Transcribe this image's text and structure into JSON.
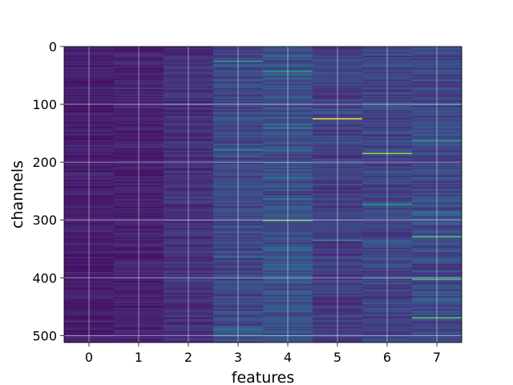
{
  "chart_data": {
    "type": "heatmap",
    "title": "",
    "xlabel": "features",
    "ylabel": "channels",
    "x_ticks": [
      0,
      1,
      2,
      3,
      4,
      5,
      6,
      7
    ],
    "y_ticks": [
      0,
      100,
      200,
      300,
      400,
      500
    ],
    "xlim": [
      -0.5,
      7.5
    ],
    "ylim": [
      512,
      0
    ],
    "n_features": 8,
    "n_channels": 512,
    "grid": true,
    "colormap": "viridis",
    "column_intensity": [
      0.08,
      0.09,
      0.14,
      0.22,
      0.24,
      0.18,
      0.2,
      0.22
    ],
    "highlights": [
      {
        "feature": 3,
        "channel": 25,
        "value": 0.55
      },
      {
        "feature": 3,
        "channel": 178,
        "value": 0.5
      },
      {
        "feature": 4,
        "channel": 42,
        "value": 0.55
      },
      {
        "feature": 4,
        "channel": 140,
        "value": 0.55
      },
      {
        "feature": 4,
        "channel": 300,
        "value": 0.75
      },
      {
        "feature": 5,
        "channel": 124,
        "value": 1.0
      },
      {
        "feature": 5,
        "channel": 335,
        "value": 0.55
      },
      {
        "feature": 6,
        "channel": 184,
        "value": 0.85
      },
      {
        "feature": 6,
        "channel": 272,
        "value": 0.55
      },
      {
        "feature": 7,
        "channel": 163,
        "value": 0.6
      },
      {
        "feature": 7,
        "channel": 328,
        "value": 0.75
      },
      {
        "feature": 7,
        "channel": 402,
        "value": 0.7
      },
      {
        "feature": 7,
        "channel": 468,
        "value": 0.75
      }
    ]
  }
}
